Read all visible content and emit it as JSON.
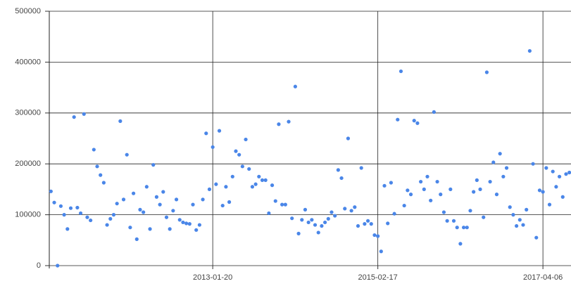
{
  "chart_data": {
    "type": "scatter",
    "color": "#4a86e8",
    "grid": true,
    "ylim": [
      0,
      500000
    ],
    "yticks": [
      0,
      100000,
      200000,
      300000,
      400000,
      500000
    ],
    "categories": [
      null,
      null,
      null,
      null,
      null,
      null,
      null,
      null,
      null,
      null,
      null,
      null,
      null,
      null,
      null,
      null,
      null,
      null,
      null,
      null,
      null,
      null,
      null,
      null,
      null,
      null,
      null,
      null,
      null,
      null,
      null,
      null,
      null,
      null,
      null,
      null,
      null,
      null,
      null,
      null,
      null,
      null,
      null,
      null,
      null,
      null,
      null,
      null,
      null,
      "2013-01-20",
      null,
      null,
      null,
      null,
      null,
      null,
      null,
      null,
      null,
      null,
      null,
      null,
      null,
      null,
      null,
      null,
      null,
      null,
      null,
      null,
      null,
      null,
      null,
      null,
      null,
      null,
      null,
      null,
      null,
      null,
      null,
      null,
      null,
      null,
      null,
      null,
      null,
      null,
      null,
      null,
      null,
      null,
      null,
      null,
      null,
      null,
      null,
      null,
      null,
      "2015-02-17",
      null,
      null,
      null,
      null,
      null,
      null,
      null,
      null,
      null,
      null,
      null,
      null,
      null,
      null,
      null,
      null,
      null,
      null,
      null,
      null,
      null,
      null,
      null,
      null,
      null,
      null,
      null,
      null,
      null,
      null,
      null,
      null,
      null,
      null,
      null,
      null,
      null,
      null,
      null,
      null,
      null,
      null,
      null,
      null,
      null,
      null,
      null,
      null,
      null,
      "2017-04-06",
      null,
      null,
      null,
      null,
      null,
      null,
      null,
      null
    ],
    "values": [
      146000,
      124000,
      0,
      117000,
      100000,
      72000,
      113000,
      292000,
      114000,
      103000,
      298000,
      95000,
      89000,
      228000,
      195000,
      178000,
      163000,
      80000,
      92000,
      100000,
      122000,
      284000,
      130000,
      218000,
      75000,
      142000,
      52000,
      110000,
      105000,
      155000,
      72000,
      198000,
      135000,
      120000,
      145000,
      95000,
      72000,
      108000,
      130000,
      90000,
      85000,
      83000,
      82000,
      120000,
      70000,
      80000,
      130000,
      260000,
      150000,
      233000,
      160000,
      265000,
      118000,
      155000,
      125000,
      175000,
      225000,
      218000,
      195000,
      248000,
      190000,
      155000,
      160000,
      175000,
      168000,
      168000,
      103000,
      158000,
      127000,
      278000,
      120000,
      120000,
      283000,
      93000,
      352000,
      63000,
      90000,
      110000,
      85000,
      90000,
      80000,
      65000,
      78000,
      85000,
      92000,
      105000,
      98000,
      188000,
      172000,
      112000,
      250000,
      108000,
      115000,
      78000,
      192000,
      82000,
      88000,
      82000,
      60000,
      58000,
      28000,
      157000,
      83000,
      163000,
      102000,
      287000,
      382000,
      118000,
      148000,
      140000,
      285000,
      280000,
      165000,
      150000,
      175000,
      128000,
      302000,
      165000,
      140000,
      105000,
      88000,
      150000,
      88000,
      75000,
      43000,
      75000,
      75000,
      108000,
      145000,
      168000,
      150000,
      95000,
      380000,
      165000,
      203000,
      140000,
      220000,
      175000,
      192000,
      115000,
      100000,
      78000,
      90000,
      80000,
      110000,
      422000,
      200000,
      55000,
      148000,
      145000,
      192000,
      120000,
      185000,
      155000,
      175000,
      135000,
      180000,
      183000
    ]
  }
}
